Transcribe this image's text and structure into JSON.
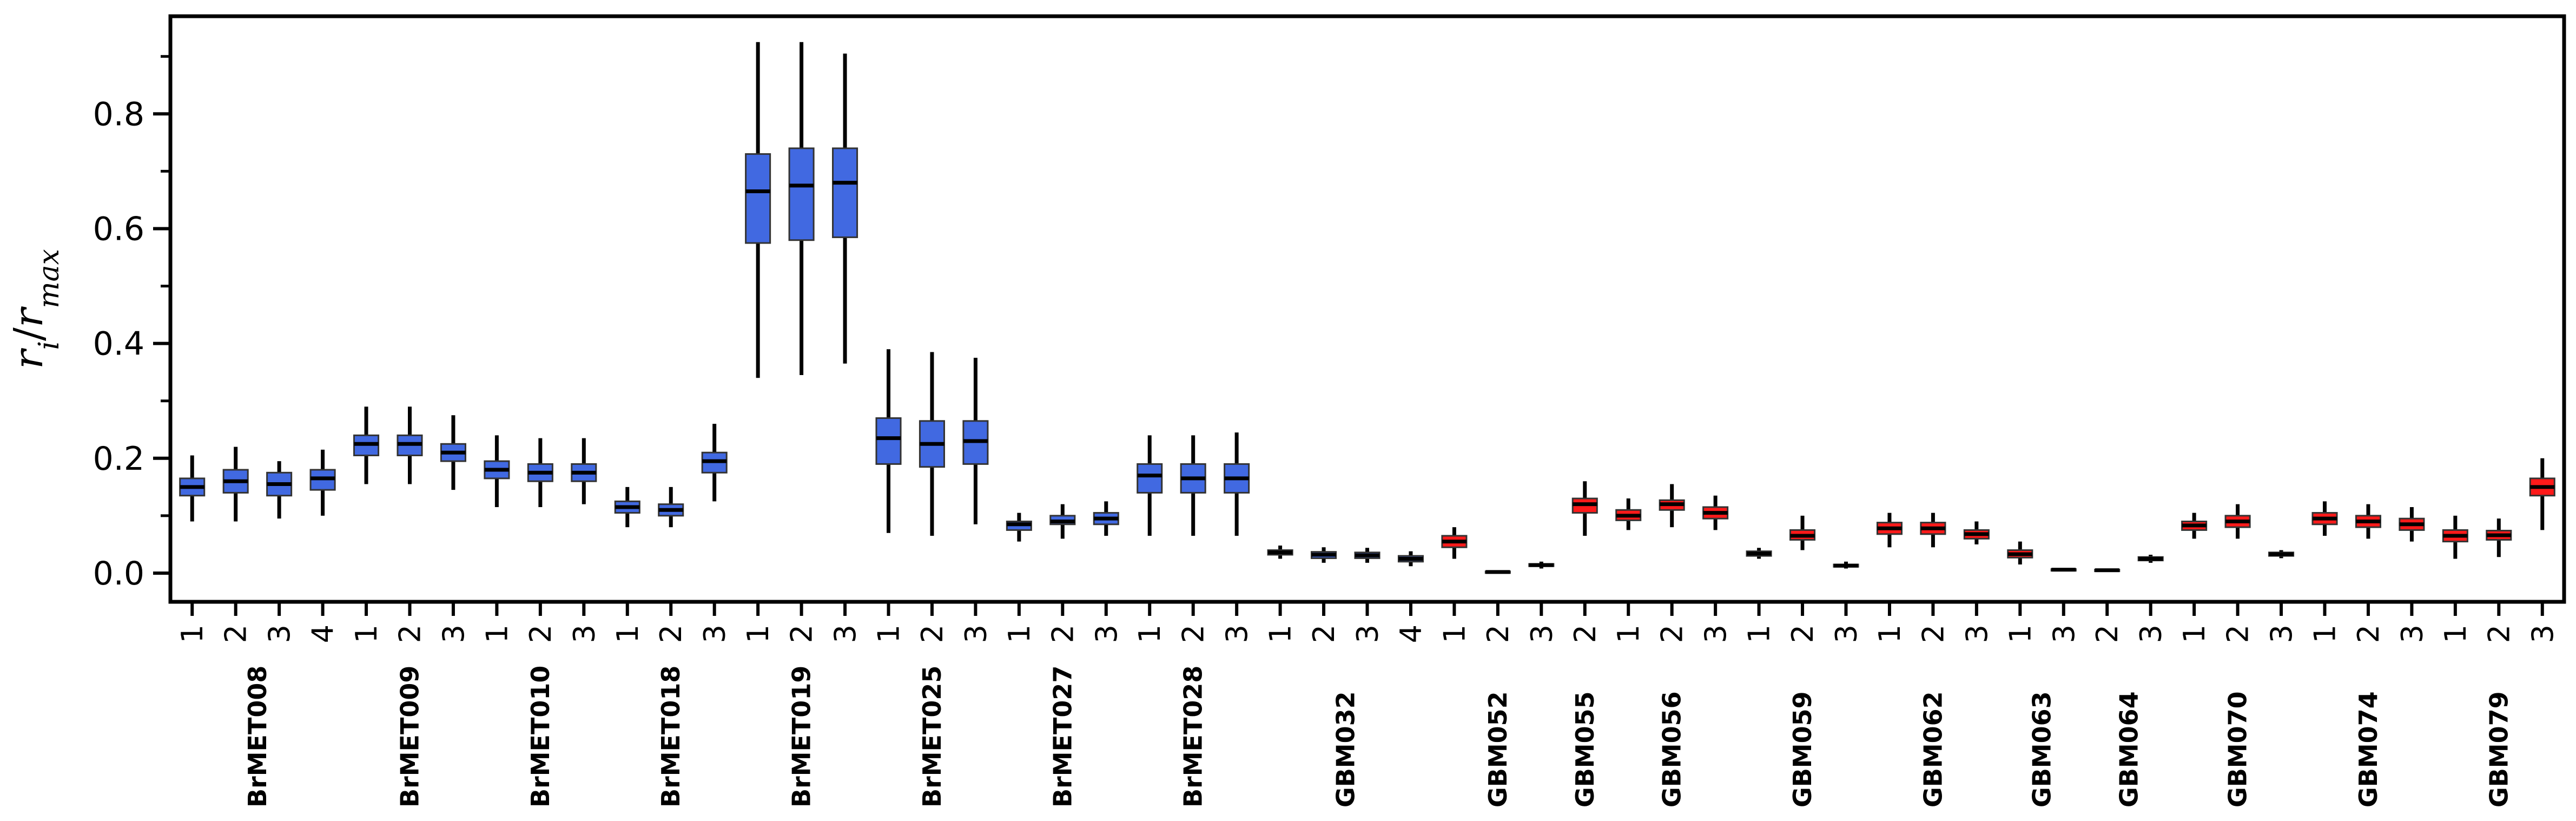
{
  "chart_data": {
    "type": "box",
    "ylabel_parts": [
      "r",
      "i",
      "/",
      "r",
      "max"
    ],
    "ylim": [
      -0.05,
      0.97
    ],
    "yticks": [
      0.0,
      0.2,
      0.4,
      0.6,
      0.8
    ],
    "yticks_minor": [
      0.0,
      0.1,
      0.2,
      0.3,
      0.4,
      0.5,
      0.6,
      0.7,
      0.8,
      0.9
    ],
    "ytick_labels": [
      "0.0",
      "0.2",
      "0.4",
      "0.6",
      "0.8"
    ],
    "colors": {
      "blue": "#4169e1",
      "red": "#ff1a1a",
      "median": "#000000",
      "whisker": "#000000"
    },
    "groups": [
      {
        "name": "BrMET008",
        "color": "blue",
        "boxes": [
          {
            "label": "1",
            "min": 0.09,
            "q1": 0.135,
            "median": 0.15,
            "q3": 0.165,
            "max": 0.205
          },
          {
            "label": "2",
            "min": 0.09,
            "q1": 0.14,
            "median": 0.16,
            "q3": 0.18,
            "max": 0.22
          },
          {
            "label": "3",
            "min": 0.095,
            "q1": 0.135,
            "median": 0.155,
            "q3": 0.175,
            "max": 0.195
          },
          {
            "label": "4",
            "min": 0.1,
            "q1": 0.145,
            "median": 0.165,
            "q3": 0.18,
            "max": 0.215
          }
        ]
      },
      {
        "name": "BrMET009",
        "color": "blue",
        "boxes": [
          {
            "label": "1",
            "min": 0.155,
            "q1": 0.205,
            "median": 0.225,
            "q3": 0.24,
            "max": 0.29
          },
          {
            "label": "2",
            "min": 0.155,
            "q1": 0.205,
            "median": 0.225,
            "q3": 0.24,
            "max": 0.29
          },
          {
            "label": "3",
            "min": 0.145,
            "q1": 0.195,
            "median": 0.21,
            "q3": 0.225,
            "max": 0.275
          }
        ]
      },
      {
        "name": "BrMET010",
        "color": "blue",
        "boxes": [
          {
            "label": "1",
            "min": 0.115,
            "q1": 0.165,
            "median": 0.18,
            "q3": 0.195,
            "max": 0.24
          },
          {
            "label": "2",
            "min": 0.115,
            "q1": 0.16,
            "median": 0.175,
            "q3": 0.19,
            "max": 0.235
          },
          {
            "label": "3",
            "min": 0.12,
            "q1": 0.16,
            "median": 0.175,
            "q3": 0.19,
            "max": 0.235
          }
        ]
      },
      {
        "name": "BrMET018",
        "color": "blue",
        "boxes": [
          {
            "label": "1",
            "min": 0.08,
            "q1": 0.105,
            "median": 0.115,
            "q3": 0.125,
            "max": 0.15
          },
          {
            "label": "2",
            "min": 0.08,
            "q1": 0.1,
            "median": 0.11,
            "q3": 0.12,
            "max": 0.15
          },
          {
            "label": "3",
            "min": 0.125,
            "q1": 0.175,
            "median": 0.195,
            "q3": 0.21,
            "max": 0.26
          }
        ]
      },
      {
        "name": "BrMET019",
        "color": "blue",
        "boxes": [
          {
            "label": "1",
            "min": 0.34,
            "q1": 0.575,
            "median": 0.665,
            "q3": 0.73,
            "max": 0.925
          },
          {
            "label": "2",
            "min": 0.345,
            "q1": 0.58,
            "median": 0.675,
            "q3": 0.74,
            "max": 0.925
          },
          {
            "label": "3",
            "min": 0.365,
            "q1": 0.585,
            "median": 0.68,
            "q3": 0.74,
            "max": 0.905
          }
        ]
      },
      {
        "name": "BrMET025",
        "color": "blue",
        "boxes": [
          {
            "label": "1",
            "min": 0.07,
            "q1": 0.19,
            "median": 0.235,
            "q3": 0.27,
            "max": 0.39
          },
          {
            "label": "2",
            "min": 0.065,
            "q1": 0.185,
            "median": 0.225,
            "q3": 0.265,
            "max": 0.385
          },
          {
            "label": "3",
            "min": 0.085,
            "q1": 0.19,
            "median": 0.23,
            "q3": 0.265,
            "max": 0.375
          }
        ]
      },
      {
        "name": "BrMET027",
        "color": "blue",
        "boxes": [
          {
            "label": "1",
            "min": 0.055,
            "q1": 0.075,
            "median": 0.085,
            "q3": 0.09,
            "max": 0.105
          },
          {
            "label": "2",
            "min": 0.06,
            "q1": 0.085,
            "median": 0.09,
            "q3": 0.1,
            "max": 0.12
          },
          {
            "label": "3",
            "min": 0.065,
            "q1": 0.085,
            "median": 0.095,
            "q3": 0.105,
            "max": 0.125
          }
        ]
      },
      {
        "name": "BrMET028",
        "color": "blue",
        "boxes": [
          {
            "label": "1",
            "min": 0.065,
            "q1": 0.14,
            "median": 0.17,
            "q3": 0.19,
            "max": 0.24
          },
          {
            "label": "2",
            "min": 0.065,
            "q1": 0.14,
            "median": 0.165,
            "q3": 0.19,
            "max": 0.24
          },
          {
            "label": "3",
            "min": 0.065,
            "q1": 0.14,
            "median": 0.165,
            "q3": 0.19,
            "max": 0.245
          }
        ]
      },
      {
        "name": "GBM032",
        "color": "blue",
        "boxes": [
          {
            "label": "1",
            "min": 0.025,
            "q1": 0.032,
            "median": 0.036,
            "q3": 0.04,
            "max": 0.048
          },
          {
            "label": "2",
            "min": 0.018,
            "q1": 0.026,
            "median": 0.032,
            "q3": 0.037,
            "max": 0.045
          },
          {
            "label": "3",
            "min": 0.018,
            "q1": 0.026,
            "median": 0.031,
            "q3": 0.036,
            "max": 0.044
          },
          {
            "label": "4",
            "min": 0.012,
            "q1": 0.02,
            "median": 0.025,
            "q3": 0.03,
            "max": 0.038
          }
        ]
      },
      {
        "name": "GBM052",
        "color": "red",
        "boxes": [
          {
            "label": "1",
            "min": 0.025,
            "q1": 0.045,
            "median": 0.055,
            "q3": 0.065,
            "max": 0.08
          },
          {
            "label": "2",
            "min": 0.0,
            "q1": 0.001,
            "median": 0.002,
            "q3": 0.003,
            "max": 0.004
          },
          {
            "label": "3",
            "min": 0.008,
            "q1": 0.012,
            "median": 0.014,
            "q3": 0.016,
            "max": 0.02
          }
        ]
      },
      {
        "name": "GBM055",
        "color": "red",
        "boxes": [
          {
            "label": "2",
            "min": 0.065,
            "q1": 0.105,
            "median": 0.12,
            "q3": 0.13,
            "max": 0.16
          }
        ]
      },
      {
        "name": "GBM056",
        "color": "red",
        "boxes": [
          {
            "label": "1",
            "min": 0.075,
            "q1": 0.092,
            "median": 0.1,
            "q3": 0.11,
            "max": 0.13
          },
          {
            "label": "2",
            "min": 0.08,
            "q1": 0.11,
            "median": 0.12,
            "q3": 0.127,
            "max": 0.155
          },
          {
            "label": "3",
            "min": 0.075,
            "q1": 0.095,
            "median": 0.105,
            "q3": 0.115,
            "max": 0.135
          }
        ]
      },
      {
        "name": "GBM059",
        "color": "red",
        "boxes": [
          {
            "label": "1",
            "min": 0.025,
            "q1": 0.03,
            "median": 0.034,
            "q3": 0.038,
            "max": 0.044
          },
          {
            "label": "2",
            "min": 0.04,
            "q1": 0.058,
            "median": 0.065,
            "q3": 0.075,
            "max": 0.1
          },
          {
            "label": "3",
            "min": 0.008,
            "q1": 0.011,
            "median": 0.013,
            "q3": 0.015,
            "max": 0.02
          }
        ]
      },
      {
        "name": "GBM062",
        "color": "red",
        "boxes": [
          {
            "label": "1",
            "min": 0.045,
            "q1": 0.068,
            "median": 0.078,
            "q3": 0.088,
            "max": 0.105
          },
          {
            "label": "2",
            "min": 0.045,
            "q1": 0.068,
            "median": 0.078,
            "q3": 0.088,
            "max": 0.105
          },
          {
            "label": "3",
            "min": 0.05,
            "q1": 0.06,
            "median": 0.068,
            "q3": 0.075,
            "max": 0.09
          }
        ]
      },
      {
        "name": "GBM063",
        "color": "red",
        "boxes": [
          {
            "label": "1",
            "min": 0.015,
            "q1": 0.027,
            "median": 0.033,
            "q3": 0.04,
            "max": 0.055
          },
          {
            "label": "3",
            "min": 0.004,
            "q1": 0.005,
            "median": 0.006,
            "q3": 0.007,
            "max": 0.008
          }
        ]
      },
      {
        "name": "GBM064",
        "color": "red",
        "boxes": [
          {
            "label": "2",
            "min": 0.003,
            "q1": 0.004,
            "median": 0.005,
            "q3": 0.006,
            "max": 0.007
          },
          {
            "label": "3",
            "min": 0.018,
            "q1": 0.022,
            "median": 0.025,
            "q3": 0.028,
            "max": 0.032
          }
        ]
      },
      {
        "name": "GBM070",
        "color": "red",
        "boxes": [
          {
            "label": "1",
            "min": 0.06,
            "q1": 0.075,
            "median": 0.083,
            "q3": 0.09,
            "max": 0.105
          },
          {
            "label": "2",
            "min": 0.06,
            "q1": 0.08,
            "median": 0.09,
            "q3": 0.1,
            "max": 0.12
          },
          {
            "label": "3",
            "min": 0.026,
            "q1": 0.03,
            "median": 0.033,
            "q3": 0.036,
            "max": 0.04
          }
        ]
      },
      {
        "name": "GBM074",
        "color": "red",
        "boxes": [
          {
            "label": "1",
            "min": 0.065,
            "q1": 0.085,
            "median": 0.095,
            "q3": 0.105,
            "max": 0.125
          },
          {
            "label": "2",
            "min": 0.06,
            "q1": 0.08,
            "median": 0.09,
            "q3": 0.1,
            "max": 0.12
          },
          {
            "label": "3",
            "min": 0.055,
            "q1": 0.075,
            "median": 0.085,
            "q3": 0.095,
            "max": 0.115
          }
        ]
      },
      {
        "name": "GBM079",
        "color": "red",
        "boxes": [
          {
            "label": "1",
            "min": 0.025,
            "q1": 0.055,
            "median": 0.065,
            "q3": 0.075,
            "max": 0.1
          },
          {
            "label": "2",
            "min": 0.028,
            "q1": 0.058,
            "median": 0.066,
            "q3": 0.074,
            "max": 0.095
          },
          {
            "label": "3",
            "min": 0.075,
            "q1": 0.135,
            "median": 0.15,
            "q3": 0.165,
            "max": 0.2
          }
        ]
      }
    ]
  }
}
